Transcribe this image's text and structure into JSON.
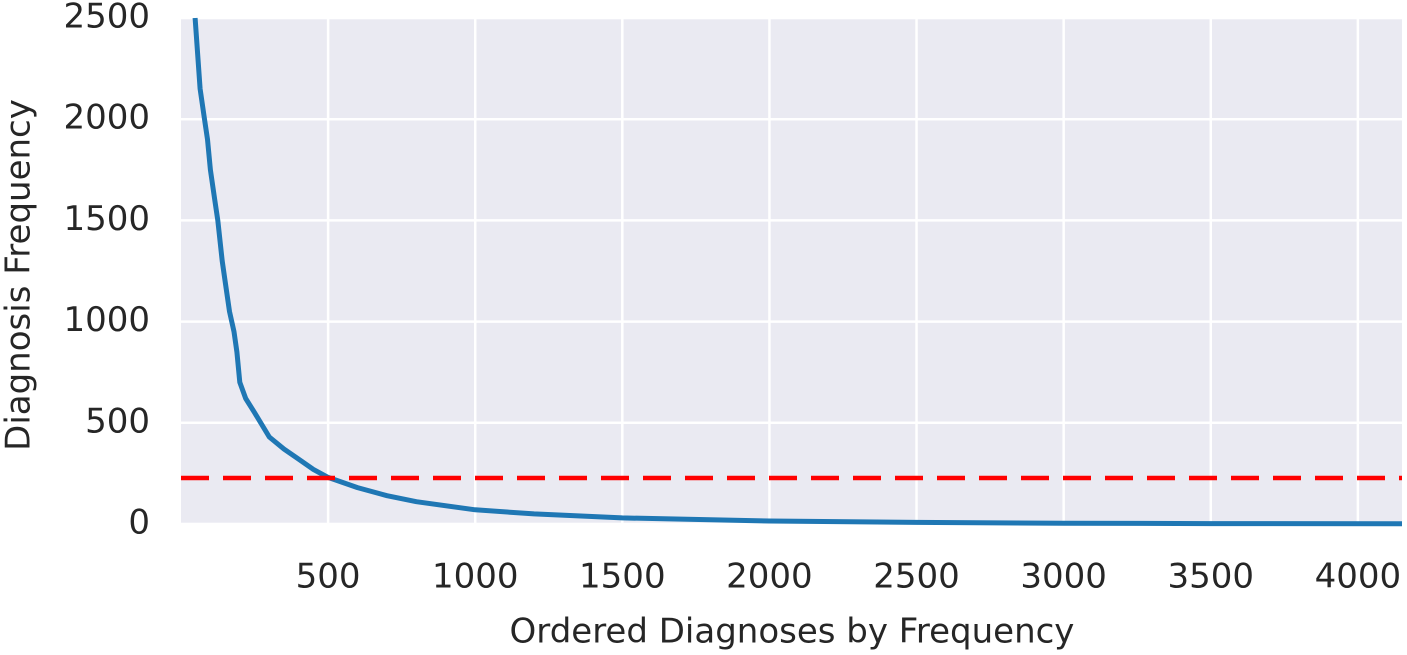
{
  "chart_data": {
    "type": "line",
    "x_label": "Ordered Diagnoses by Frequency",
    "y_label": "Diagnosis Frequency",
    "x": [
      48,
      65,
      80,
      90,
      100,
      115,
      125,
      140,
      150,
      165,
      180,
      190,
      200,
      220,
      250,
      300,
      350,
      400,
      450,
      500,
      600,
      700,
      800,
      1000,
      1200,
      1500,
      2000,
      2500,
      3000,
      3500,
      4150
    ],
    "series": [
      {
        "color": "#1f77b4",
        "values": [
          2500,
          2150,
          2000,
          1900,
          1750,
          1600,
          1500,
          1300,
          1200,
          1050,
          950,
          850,
          700,
          620,
          550,
          430,
          370,
          320,
          270,
          230,
          180,
          140,
          110,
          70,
          50,
          30,
          15,
          8,
          4,
          2,
          1
        ]
      }
    ],
    "threshold": {
      "value": 227,
      "color": "#ff0000"
    },
    "xlim": [
      0,
      4150
    ],
    "ylim": [
      0,
      2500
    ],
    "xticks": [
      500,
      1000,
      1500,
      2000,
      2500,
      3000,
      3500,
      4000
    ],
    "yticks": [
      0,
      500,
      1000,
      1500,
      2000,
      2500
    ],
    "grid": true
  }
}
